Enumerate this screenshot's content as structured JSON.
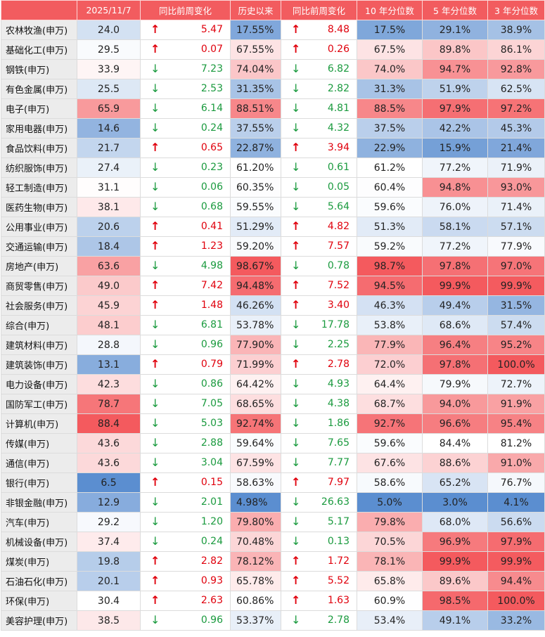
{
  "headers": [
    "",
    "2025/11/7",
    "同比前周变化",
    "历史以来",
    "同比前周变化",
    "10 年分位数",
    "5 年分位数",
    "3 年分位数"
  ],
  "rows": [
    {
      "name": "农林牧渔(申万)",
      "val": "24.0",
      "c1": {
        "dir": "up",
        "v": "5.47"
      },
      "hist": "17.55%",
      "c2": {
        "dir": "up",
        "v": "8.48"
      },
      "p10": "17.5%",
      "p5": "29.1%",
      "p3": "38.9%"
    },
    {
      "name": "基础化工(申万)",
      "val": "29.5",
      "c1": {
        "dir": "up",
        "v": "0.07"
      },
      "hist": "67.55%",
      "c2": {
        "dir": "up",
        "v": "0.26"
      },
      "p10": "67.5%",
      "p5": "89.8%",
      "p3": "86.1%"
    },
    {
      "name": "钢铁(申万)",
      "val": "33.9",
      "c1": {
        "dir": "down",
        "v": "7.23"
      },
      "hist": "74.04%",
      "c2": {
        "dir": "down",
        "v": "6.82"
      },
      "p10": "74.0%",
      "p5": "94.7%",
      "p3": "92.8%"
    },
    {
      "name": "有色金属(申万)",
      "val": "25.5",
      "c1": {
        "dir": "down",
        "v": "2.53"
      },
      "hist": "31.35%",
      "c2": {
        "dir": "down",
        "v": "2.82"
      },
      "p10": "31.3%",
      "p5": "51.9%",
      "p3": "62.5%"
    },
    {
      "name": "电子(申万)",
      "val": "65.9",
      "c1": {
        "dir": "down",
        "v": "6.14"
      },
      "hist": "88.51%",
      "c2": {
        "dir": "down",
        "v": "4.81"
      },
      "p10": "88.5%",
      "p5": "97.9%",
      "p3": "97.2%"
    },
    {
      "name": "家用电器(申万)",
      "val": "14.6",
      "c1": {
        "dir": "down",
        "v": "0.24"
      },
      "hist": "37.55%",
      "c2": {
        "dir": "down",
        "v": "4.32"
      },
      "p10": "37.5%",
      "p5": "42.2%",
      "p3": "45.3%"
    },
    {
      "name": "食品饮料(申万)",
      "val": "21.7",
      "c1": {
        "dir": "up",
        "v": "0.65"
      },
      "hist": "22.87%",
      "c2": {
        "dir": "up",
        "v": "3.94"
      },
      "p10": "22.9%",
      "p5": "15.9%",
      "p3": "21.4%"
    },
    {
      "name": "纺织服饰(申万)",
      "val": "27.4",
      "c1": {
        "dir": "down",
        "v": "0.23"
      },
      "hist": "61.20%",
      "c2": {
        "dir": "down",
        "v": "0.61"
      },
      "p10": "61.2%",
      "p5": "77.2%",
      "p3": "71.9%"
    },
    {
      "name": "轻工制造(申万)",
      "val": "31.1",
      "c1": {
        "dir": "down",
        "v": "0.06"
      },
      "hist": "60.35%",
      "c2": {
        "dir": "down",
        "v": "0.05"
      },
      "p10": "60.4%",
      "p5": "94.8%",
      "p3": "93.0%"
    },
    {
      "name": "医药生物(申万)",
      "val": "38.1",
      "c1": {
        "dir": "down",
        "v": "0.68"
      },
      "hist": "59.55%",
      "c2": {
        "dir": "down",
        "v": "5.64"
      },
      "p10": "59.6%",
      "p5": "76.0%",
      "p3": "71.4%"
    },
    {
      "name": "公用事业(申万)",
      "val": "20.6",
      "c1": {
        "dir": "up",
        "v": "0.41"
      },
      "hist": "51.29%",
      "c2": {
        "dir": "up",
        "v": "4.82"
      },
      "p10": "51.3%",
      "p5": "58.1%",
      "p3": "57.1%"
    },
    {
      "name": "交通运输(申万)",
      "val": "18.4",
      "c1": {
        "dir": "up",
        "v": "1.23"
      },
      "hist": "59.20%",
      "c2": {
        "dir": "up",
        "v": "7.57"
      },
      "p10": "59.2%",
      "p5": "77.2%",
      "p3": "77.9%"
    },
    {
      "name": "房地产(申万)",
      "val": "63.6",
      "c1": {
        "dir": "down",
        "v": "4.98"
      },
      "hist": "98.67%",
      "c2": {
        "dir": "down",
        "v": "0.78"
      },
      "p10": "98.7%",
      "p5": "97.8%",
      "p3": "97.0%"
    },
    {
      "name": "商贸零售(申万)",
      "val": "49.0",
      "c1": {
        "dir": "up",
        "v": "7.42"
      },
      "hist": "94.48%",
      "c2": {
        "dir": "up",
        "v": "7.52"
      },
      "p10": "94.5%",
      "p5": "99.9%",
      "p3": "99.9%"
    },
    {
      "name": "社会服务(申万)",
      "val": "45.9",
      "c1": {
        "dir": "up",
        "v": "1.48"
      },
      "hist": "46.26%",
      "c2": {
        "dir": "up",
        "v": "3.40"
      },
      "p10": "46.3%",
      "p5": "49.4%",
      "p3": "31.5%"
    },
    {
      "name": "综合(申万)",
      "val": "48.1",
      "c1": {
        "dir": "down",
        "v": "6.81"
      },
      "hist": "53.78%",
      "c2": {
        "dir": "down",
        "v": "17.78"
      },
      "p10": "53.8%",
      "p5": "68.6%",
      "p3": "57.4%"
    },
    {
      "name": "建筑材料(申万)",
      "val": "28.8",
      "c1": {
        "dir": "down",
        "v": "0.96"
      },
      "hist": "77.90%",
      "c2": {
        "dir": "down",
        "v": "2.25"
      },
      "p10": "77.9%",
      "p5": "96.4%",
      "p3": "95.2%"
    },
    {
      "name": "建筑装饰(申万)",
      "val": "13.1",
      "c1": {
        "dir": "up",
        "v": "0.79"
      },
      "hist": "71.99%",
      "c2": {
        "dir": "up",
        "v": "2.78"
      },
      "p10": "72.0%",
      "p5": "97.8%",
      "p3": "100.0%"
    },
    {
      "name": "电力设备(申万)",
      "val": "42.3",
      "c1": {
        "dir": "down",
        "v": "0.86"
      },
      "hist": "64.42%",
      "c2": {
        "dir": "down",
        "v": "4.93"
      },
      "p10": "64.4%",
      "p5": "79.9%",
      "p3": "72.7%"
    },
    {
      "name": "国防军工(申万)",
      "val": "78.7",
      "c1": {
        "dir": "down",
        "v": "7.05"
      },
      "hist": "68.65%",
      "c2": {
        "dir": "down",
        "v": "4.38"
      },
      "p10": "68.7%",
      "p5": "94.0%",
      "p3": "91.9%"
    },
    {
      "name": "计算机(申万)",
      "val": "88.4",
      "c1": {
        "dir": "down",
        "v": "5.03"
      },
      "hist": "92.74%",
      "c2": {
        "dir": "down",
        "v": "1.86"
      },
      "p10": "92.7%",
      "p5": "96.6%",
      "p3": "95.4%"
    },
    {
      "name": "传媒(申万)",
      "val": "43.6",
      "c1": {
        "dir": "down",
        "v": "2.88"
      },
      "hist": "59.64%",
      "c2": {
        "dir": "down",
        "v": "7.65"
      },
      "p10": "59.6%",
      "p5": "84.4%",
      "p3": "81.2%"
    },
    {
      "name": "通信(申万)",
      "val": "43.6",
      "c1": {
        "dir": "down",
        "v": "3.04"
      },
      "hist": "67.59%",
      "c2": {
        "dir": "down",
        "v": "7.77"
      },
      "p10": "67.6%",
      "p5": "88.6%",
      "p3": "91.0%"
    },
    {
      "name": "银行(申万)",
      "val": "6.5",
      "c1": {
        "dir": "up",
        "v": "0.15"
      },
      "hist": "58.63%",
      "c2": {
        "dir": "up",
        "v": "7.97"
      },
      "p10": "58.6%",
      "p5": "65.2%",
      "p3": "76.7%"
    },
    {
      "name": "非银金融(申万)",
      "val": "12.9",
      "c1": {
        "dir": "down",
        "v": "2.01"
      },
      "hist": "4.98%",
      "c2": {
        "dir": "down",
        "v": "26.63"
      },
      "p10": "5.0%",
      "p5": "3.0%",
      "p3": "4.1%"
    },
    {
      "name": "汽车(申万)",
      "val": "29.2",
      "c1": {
        "dir": "down",
        "v": "1.20"
      },
      "hist": "79.80%",
      "c2": {
        "dir": "down",
        "v": "5.17"
      },
      "p10": "79.8%",
      "p5": "68.0%",
      "p3": "56.6%"
    },
    {
      "name": "机械设备(申万)",
      "val": "37.4",
      "c1": {
        "dir": "down",
        "v": "0.24"
      },
      "hist": "70.48%",
      "c2": {
        "dir": "down",
        "v": "0.13"
      },
      "p10": "70.5%",
      "p5": "96.9%",
      "p3": "97.9%"
    },
    {
      "name": "煤炭(申万)",
      "val": "19.8",
      "c1": {
        "dir": "up",
        "v": "2.82"
      },
      "hist": "78.12%",
      "c2": {
        "dir": "up",
        "v": "1.72"
      },
      "p10": "78.1%",
      "p5": "99.9%",
      "p3": "99.9%"
    },
    {
      "name": "石油石化(申万)",
      "val": "20.1",
      "c1": {
        "dir": "up",
        "v": "0.93"
      },
      "hist": "65.78%",
      "c2": {
        "dir": "up",
        "v": "5.52"
      },
      "p10": "65.8%",
      "p5": "89.6%",
      "p3": "94.4%"
    },
    {
      "name": "环保(申万)",
      "val": "30.4",
      "c1": {
        "dir": "up",
        "v": "2.63"
      },
      "hist": "60.86%",
      "c2": {
        "dir": "up",
        "v": "1.63"
      },
      "p10": "60.9%",
      "p5": "98.5%",
      "p3": "100.0%"
    },
    {
      "name": "美容护理(申万)",
      "val": "38.5",
      "c1": {
        "dir": "down",
        "v": "0.96"
      },
      "hist": "53.37%",
      "c2": {
        "dir": "down",
        "v": "2.78"
      },
      "p10": "53.4%",
      "p5": "49.1%",
      "p3": "33.2%"
    }
  ],
  "colors": {
    "header_bg": "#f25c5f",
    "up": "#e0000c",
    "down": "#1a9a3e",
    "heat_low": "#5b8ed0",
    "heat_mid": "#ffffff",
    "heat_high": "#f45a5e"
  },
  "icons": {
    "up": "arrow-up-icon",
    "down": "arrow-down-icon"
  }
}
